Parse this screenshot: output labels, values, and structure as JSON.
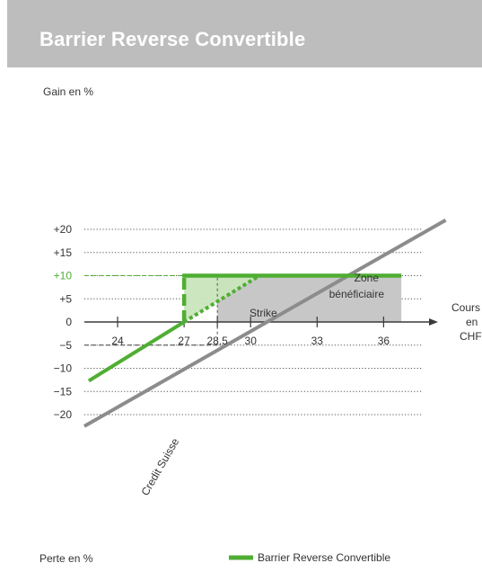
{
  "header": {
    "title": "Barrier Reverse Convertible"
  },
  "labels": {
    "y_top": "Gain en %",
    "y_bottom": "Perte en %",
    "x_axis_lines": [
      "Cours",
      "en",
      "CHF"
    ],
    "strike": "Strike",
    "zone_lines": [
      "Zone",
      "bénéficiaire"
    ],
    "underlying": "Credit Suisse"
  },
  "legend": {
    "label": "Barrier Reverse Convertible"
  },
  "colors": {
    "green": "#4fae32",
    "green_light": "#c9e5bd",
    "grey_zone": "#c7c7c8",
    "grey_line": "#8c8c8c",
    "axis": "#3a3a3a",
    "title_bar": "#bdbdbd"
  },
  "chart_data": {
    "type": "line",
    "title": "Barrier Reverse Convertible",
    "xlabel": "Cours en CHF",
    "ylabel": "Gain en %",
    "xlim": [
      21.5,
      38.5
    ],
    "ylim": [
      -22.5,
      23
    ],
    "x_ticks": [
      24,
      27,
      28.5,
      30,
      33,
      36
    ],
    "x_tick_labels": [
      "24",
      "27",
      "28,5",
      "30",
      "33",
      "36"
    ],
    "y_ticks": [
      20,
      15,
      10,
      5,
      0,
      -5,
      -10,
      -15,
      -20
    ],
    "y_tick_labels": [
      "+20",
      "+15",
      "+10",
      "+5",
      "0",
      "−5",
      "−10",
      "−15",
      "−20"
    ],
    "series": [
      {
        "name": "Barrier Reverse Convertible",
        "points": [
          [
            22.7,
            -12.7
          ],
          [
            27,
            0
          ],
          [
            27,
            10
          ],
          [
            36.8,
            10
          ]
        ]
      },
      {
        "name": "Credit Suisse",
        "points": [
          [
            22.5,
            -22.5
          ],
          [
            38.8,
            22
          ]
        ]
      }
    ],
    "barrier_dashed": [
      [
        27,
        0
      ],
      [
        27,
        10
      ]
    ],
    "dotted_path": [
      [
        27,
        0
      ],
      [
        30.4,
        10
      ]
    ],
    "zone": {
      "x": [
        28.5,
        36.8
      ],
      "y": [
        0,
        10
      ]
    },
    "reference_lines": [
      {
        "y": 10,
        "x_from": 21.5,
        "x_to": 27
      },
      {
        "y": -5,
        "x_from": 21.5,
        "x_to": 28.5
      },
      {
        "x": 28.5,
        "y_from": -5,
        "y_to": 10
      }
    ],
    "grid": "dotted-horizontal",
    "legend_position": "bottom"
  }
}
